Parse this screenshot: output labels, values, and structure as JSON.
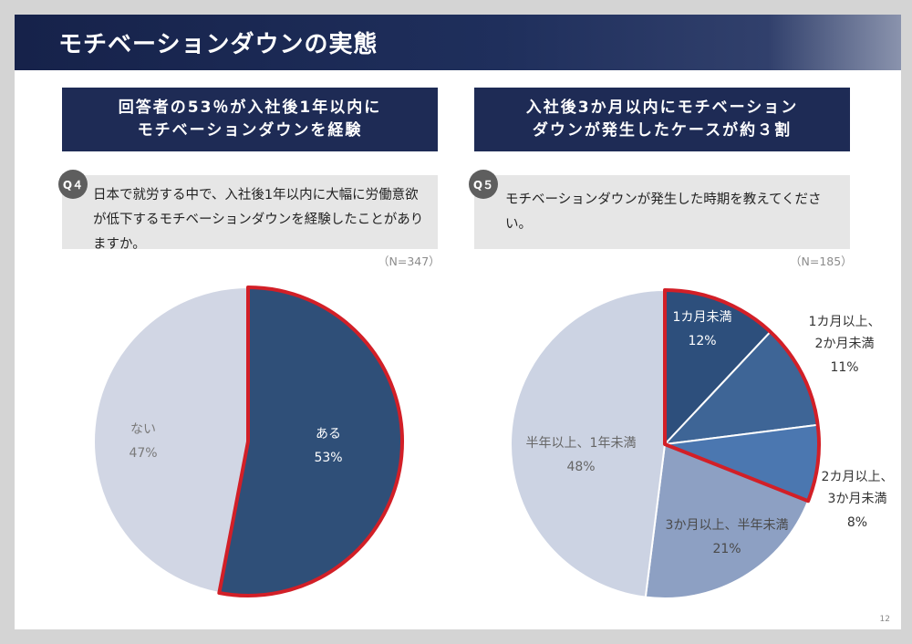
{
  "title": "モチベーションダウンの実態",
  "left": {
    "headline_line1": "回答者の53％が入社後1年以内に",
    "headline_line2": "モチベーションダウンを経験",
    "q_badge": "Q４",
    "question": "日本で就労する中で、入社後1年以内に大幅に労働意欲が低下するモチベーションダウンを経験したことがありますか。",
    "n": "（N=347）"
  },
  "right": {
    "headline_line1": "入社後3か月以内にモチベーション",
    "headline_line2": "ダウンが発生したケースが約３割",
    "q_badge": "Q５",
    "question": "モチベーションダウンが発生した時期を教えてください。",
    "n": "（N=185）"
  },
  "chart_data": [
    {
      "type": "pie",
      "slices": [
        {
          "label": "ある",
          "value": 53,
          "pct": "53%",
          "color": "#2f4f78",
          "highlight": true
        },
        {
          "label": "ない",
          "value": 47,
          "pct": "47%",
          "color": "#d1d6e4",
          "highlight": false
        }
      ]
    },
    {
      "type": "pie",
      "slices": [
        {
          "label": "1カ月未満",
          "value": 12,
          "pct": "12%",
          "color": "#2d4f7c",
          "highlight": true
        },
        {
          "label": "1カ月以上、\n2か月未満",
          "value": 11,
          "pct": "11%",
          "color": "#3e6596",
          "highlight": true
        },
        {
          "label": "2カ月以上、\n3か月未満",
          "value": 8,
          "pct": "8%",
          "color": "#4b77b0",
          "highlight": true
        },
        {
          "label": "3か月以上、半年未満",
          "value": 21,
          "pct": "21%",
          "color": "#8da0c3",
          "highlight": false
        },
        {
          "label": "半年以上、1年未満",
          "value": 48,
          "pct": "48%",
          "color": "#ccd3e3",
          "highlight": false
        }
      ]
    }
  ],
  "page_number": "12"
}
